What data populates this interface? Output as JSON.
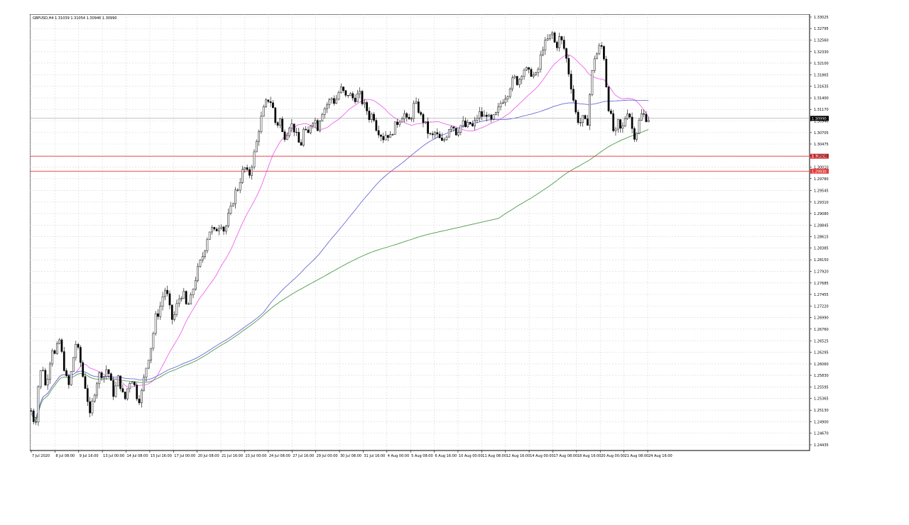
{
  "chart_data": {
    "type": "candlestick",
    "symbol_header": "GBPUSD,H4  1.31039 1.31054 1.30946 1.30990",
    "ylim": [
      1.24435,
      1.33025
    ],
    "y_ticks": [
      "1.33025",
      "1.32795",
      "1.32560",
      "1.32330",
      "1.32100",
      "1.31865",
      "1.31635",
      "1.31400",
      "1.31170",
      "1.30940",
      "1.30705",
      "1.30475",
      "1.30240",
      "1.30010",
      "1.29780",
      "1.29545",
      "1.29310",
      "1.29080",
      "1.28845",
      "1.28615",
      "1.28385",
      "1.28150",
      "1.27920",
      "1.27685",
      "1.27455",
      "1.27220",
      "1.26990",
      "1.26760",
      "1.26525",
      "1.26295",
      "1.26060",
      "1.25830",
      "1.25595",
      "1.25365",
      "1.25130",
      "1.24900",
      "1.24670",
      "1.24435"
    ],
    "x_ticks": [
      "7 Jul 2020",
      "8 Jul 08:00",
      "9 Jul 16:00",
      "13 Jul 00:00",
      "14 Jul 08:00",
      "15 Jul 16:00",
      "17 Jul 00:00",
      "20 Jul 08:00",
      "21 Jul 16:00",
      "23 Jul 00:00",
      "24 Jul 08:00",
      "27 Jul 16:00",
      "29 Jul 00:00",
      "30 Jul 08:00",
      "31 Jul 16:00",
      "4 Aug 00:00",
      "5 Aug 08:00",
      "6 Aug 16:00",
      "10 Aug 00:00",
      "11 Aug 08:00",
      "12 Aug 16:00",
      "14 Aug 00:00",
      "17 Aug 08:00",
      "18 Aug 16:00",
      "20 Aug 00:00",
      "21 Aug 08:00",
      "24 Aug 16:00"
    ],
    "current_price": "1.30990",
    "horizontal_levels": [
      "1.30230",
      "1.29930"
    ],
    "ma_colors": {
      "fast": "#ee66ee",
      "mid": "#6a6ad8",
      "slow": "#4c9a4c"
    },
    "level_color": "#e43b3b",
    "close_path": [
      [
        0,
        1.2512
      ],
      [
        6,
        1.248
      ],
      [
        10,
        1.256
      ],
      [
        16,
        1.261
      ],
      [
        20,
        1.256
      ],
      [
        25,
        1.259
      ],
      [
        30,
        1.264
      ],
      [
        35,
        1.262
      ],
      [
        40,
        1.266
      ],
      [
        45,
        1.262
      ],
      [
        50,
        1.258
      ],
      [
        55,
        1.256
      ],
      [
        60,
        1.261
      ],
      [
        65,
        1.265
      ],
      [
        70,
        1.262
      ],
      [
        75,
        1.258
      ],
      [
        80,
        1.255
      ],
      [
        85,
        1.25
      ],
      [
        90,
        1.254
      ],
      [
        95,
        1.257
      ],
      [
        100,
        1.259
      ],
      [
        105,
        1.258
      ],
      [
        110,
        1.26
      ],
      [
        115,
        1.257
      ],
      [
        120,
        1.254
      ],
      [
        125,
        1.258
      ],
      [
        130,
        1.256
      ],
      [
        135,
        1.253
      ],
      [
        140,
        1.256
      ],
      [
        145,
        1.258
      ],
      [
        150,
        1.256
      ],
      [
        155,
        1.253
      ],
      [
        160,
        1.255
      ],
      [
        165,
        1.259
      ],
      [
        170,
        1.262
      ],
      [
        175,
        1.265
      ],
      [
        180,
        1.27
      ],
      [
        185,
        1.271
      ],
      [
        190,
        1.274
      ],
      [
        195,
        1.276
      ],
      [
        200,
        1.272
      ],
      [
        205,
        1.269
      ],
      [
        210,
        1.272
      ],
      [
        215,
        1.274
      ],
      [
        220,
        1.275
      ],
      [
        225,
        1.272
      ],
      [
        230,
        1.273
      ],
      [
        235,
        1.276
      ],
      [
        240,
        1.279
      ],
      [
        245,
        1.281
      ],
      [
        250,
        1.283
      ],
      [
        255,
        1.286
      ],
      [
        260,
        1.288
      ],
      [
        265,
        1.287
      ],
      [
        270,
        1.288
      ],
      [
        275,
        1.289
      ],
      [
        280,
        1.287
      ],
      [
        285,
        1.29
      ],
      [
        290,
        1.292
      ],
      [
        295,
        1.295
      ],
      [
        300,
        1.296
      ],
      [
        305,
        1.299
      ],
      [
        310,
        1.3
      ],
      [
        315,
        1.298
      ],
      [
        320,
        1.301
      ],
      [
        325,
        1.304
      ],
      [
        330,
        1.308
      ],
      [
        335,
        1.311
      ],
      [
        340,
        1.313
      ],
      [
        345,
        1.314
      ],
      [
        350,
        1.312
      ],
      [
        355,
        1.308
      ],
      [
        360,
        1.31
      ],
      [
        365,
        1.306
      ],
      [
        370,
        1.307
      ],
      [
        375,
        1.309
      ],
      [
        380,
        1.308
      ],
      [
        385,
        1.306
      ],
      [
        390,
        1.304
      ],
      [
        395,
        1.308
      ],
      [
        400,
        1.306
      ],
      [
        405,
        1.309
      ],
      [
        410,
        1.31
      ],
      [
        415,
        1.308
      ],
      [
        420,
        1.311
      ],
      [
        425,
        1.312
      ],
      [
        430,
        1.313
      ],
      [
        435,
        1.314
      ],
      [
        440,
        1.313
      ],
      [
        445,
        1.315
      ],
      [
        450,
        1.316
      ],
      [
        455,
        1.314
      ],
      [
        460,
        1.315
      ],
      [
        465,
        1.314
      ],
      [
        470,
        1.314
      ],
      [
        475,
        1.315
      ],
      [
        480,
        1.313
      ],
      [
        485,
        1.312
      ],
      [
        490,
        1.31
      ],
      [
        495,
        1.311
      ],
      [
        500,
        1.308
      ],
      [
        505,
        1.307
      ],
      [
        510,
        1.306
      ],
      [
        515,
        1.307
      ],
      [
        520,
        1.306
      ],
      [
        525,
        1.308
      ],
      [
        530,
        1.309
      ],
      [
        535,
        1.31
      ],
      [
        540,
        1.311
      ],
      [
        545,
        1.309
      ],
      [
        550,
        1.31
      ],
      [
        555,
        1.313
      ],
      [
        560,
        1.312
      ],
      [
        565,
        1.31
      ],
      [
        570,
        1.309
      ],
      [
        575,
        1.307
      ],
      [
        580,
        1.306
      ],
      [
        585,
        1.307
      ],
      [
        590,
        1.306
      ],
      [
        595,
        1.305
      ],
      [
        600,
        1.306
      ],
      [
        605,
        1.308
      ],
      [
        610,
        1.309
      ],
      [
        615,
        1.307
      ],
      [
        620,
        1.308
      ],
      [
        625,
        1.309
      ],
      [
        630,
        1.308
      ],
      [
        635,
        1.309
      ],
      [
        640,
        1.308
      ],
      [
        645,
        1.31
      ],
      [
        650,
        1.311
      ],
      [
        655,
        1.31
      ],
      [
        660,
        1.311
      ],
      [
        665,
        1.309
      ],
      [
        670,
        1.31
      ],
      [
        675,
        1.311
      ],
      [
        680,
        1.313
      ],
      [
        685,
        1.314
      ],
      [
        690,
        1.315
      ],
      [
        695,
        1.317
      ],
      [
        700,
        1.318
      ],
      [
        705,
        1.317
      ],
      [
        710,
        1.319
      ],
      [
        715,
        1.32
      ],
      [
        720,
        1.319
      ],
      [
        725,
        1.319
      ],
      [
        730,
        1.318
      ],
      [
        735,
        1.32
      ],
      [
        740,
        1.324
      ],
      [
        745,
        1.325
      ],
      [
        750,
        1.326
      ],
      [
        755,
        1.327
      ],
      [
        760,
        1.324
      ],
      [
        765,
        1.326
      ],
      [
        770,
        1.325
      ],
      [
        775,
        1.322
      ],
      [
        780,
        1.318
      ],
      [
        785,
        1.314
      ],
      [
        790,
        1.31
      ],
      [
        795,
        1.309
      ],
      [
        800,
        1.31
      ],
      [
        805,
        1.308
      ],
      [
        810,
        1.316
      ],
      [
        815,
        1.322
      ],
      [
        820,
        1.323
      ],
      [
        825,
        1.325
      ],
      [
        830,
        1.322
      ],
      [
        835,
        1.313
      ],
      [
        840,
        1.31
      ],
      [
        845,
        1.306
      ],
      [
        850,
        1.309
      ],
      [
        855,
        1.307
      ],
      [
        860,
        1.31
      ],
      [
        865,
        1.312
      ],
      [
        870,
        1.308
      ],
      [
        875,
        1.306
      ],
      [
        880,
        1.309
      ],
      [
        885,
        1.311
      ],
      [
        890,
        1.31
      ],
      [
        895,
        1.3099
      ]
    ]
  }
}
